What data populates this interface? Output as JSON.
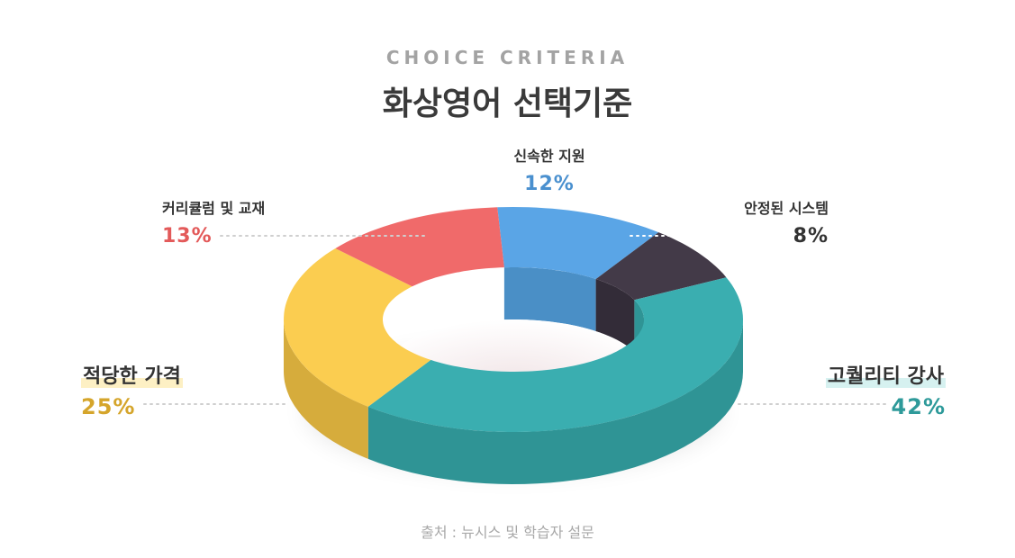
{
  "header": {
    "eyebrow": "CHOICE CRITERIA",
    "title": "화상영어 선택기준"
  },
  "source": "출처 : 뉴시스 및 학습자 설문",
  "chart_data": {
    "type": "pie",
    "style": "3d-donut",
    "categories": [
      "신속한 지원",
      "안정된 시스템",
      "고퀄리티 강사",
      "적당한 가격",
      "커리큘럼 및 교재"
    ],
    "values": [
      12,
      8,
      42,
      25,
      13
    ],
    "labels": [
      "12%",
      "8%",
      "42%",
      "25%",
      "13%"
    ],
    "colors": [
      "#5aa5e6",
      "#433a48",
      "#3aaeb0",
      "#fbcd50",
      "#f06a6a"
    ],
    "side_colors": [
      "#4a8fc6",
      "#332c38",
      "#2f9495",
      "#d6ac3c",
      "#d45656"
    ],
    "label_colors": [
      "#4a90cf",
      "#333333",
      "#2e9a9a",
      "#d5a52b",
      "#e35a5a"
    ],
    "legend": "none"
  }
}
